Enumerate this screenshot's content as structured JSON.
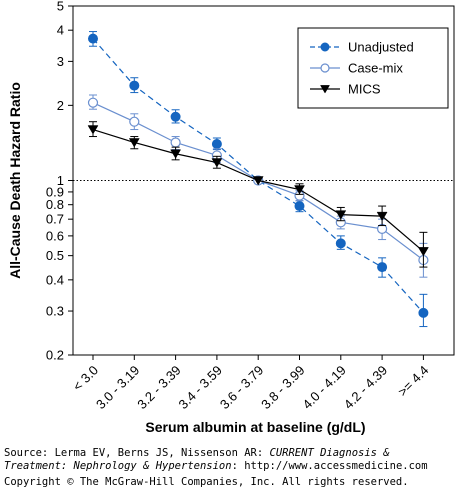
{
  "chart_data": {
    "type": "line",
    "xlabel": "Serum albumin at baseline (g/dL)",
    "ylabel": "All-Cause Death Hazard Ratio",
    "yscale": "log",
    "ylim": [
      0.2,
      5
    ],
    "yticks": [
      0.2,
      0.3,
      0.4,
      0.5,
      0.6,
      0.7,
      0.8,
      0.9,
      1,
      2,
      3,
      4,
      5
    ],
    "ytick_labels": [
      "0.2",
      "0.3",
      "0.4",
      "0.5",
      "0.6",
      "0.7",
      "0.8",
      "0.9",
      "1",
      "2",
      "3",
      "4",
      "5"
    ],
    "reference_line": 1,
    "categories": [
      "< 3.0",
      "3.0 - 3.19",
      "3.2 - 3.39",
      "3.4 - 3.59",
      "3.6 - 3.79",
      "3.8 - 3.99",
      "4.0 - 4.19",
      "4.2 - 4.39",
      ">= 4.4"
    ],
    "legend_position": "top-right",
    "series": [
      {
        "name": "Unadjusted",
        "color": "#1565c0",
        "marker": "filled-circle",
        "line": "dashed",
        "values": [
          3.7,
          2.4,
          1.8,
          1.4,
          1.0,
          0.79,
          0.56,
          0.45,
          0.295
        ],
        "lower": [
          3.45,
          2.25,
          1.7,
          1.33,
          1.0,
          0.75,
          0.53,
          0.41,
          0.26
        ],
        "upper": [
          3.95,
          2.58,
          1.92,
          1.48,
          1.0,
          0.83,
          0.6,
          0.49,
          0.35
        ]
      },
      {
        "name": "Case-mix",
        "color": "#6a8fcf",
        "marker": "open-circle",
        "line": "solid",
        "values": [
          2.05,
          1.72,
          1.42,
          1.26,
          1.0,
          0.87,
          0.68,
          0.64,
          0.48
        ],
        "lower": [
          1.93,
          1.6,
          1.33,
          1.18,
          1.0,
          0.83,
          0.64,
          0.58,
          0.41
        ],
        "upper": [
          2.2,
          1.85,
          1.5,
          1.34,
          1.0,
          0.91,
          0.72,
          0.7,
          0.56
        ]
      },
      {
        "name": "MICS",
        "color": "#000000",
        "marker": "filled-triangle-down",
        "line": "solid",
        "values": [
          1.6,
          1.42,
          1.28,
          1.18,
          1.0,
          0.92,
          0.73,
          0.72,
          0.52
        ],
        "lower": [
          1.5,
          1.34,
          1.21,
          1.12,
          1.0,
          0.88,
          0.69,
          0.66,
          0.45
        ],
        "upper": [
          1.72,
          1.5,
          1.36,
          1.25,
          1.0,
          0.97,
          0.78,
          0.79,
          0.62
        ]
      }
    ]
  },
  "footer": {
    "source_prefix": "Source: Lerma EV, Berns JS, Nissenson AR: ",
    "source_title_1": "CURRENT Diagnosis &",
    "source_title_2": "Treatment: Nephrology & Hypertension",
    "source_suffix": ": http://www.accessmedicine.com",
    "copyright": "Copyright © The McGraw-Hill Companies, Inc. All rights reserved."
  }
}
